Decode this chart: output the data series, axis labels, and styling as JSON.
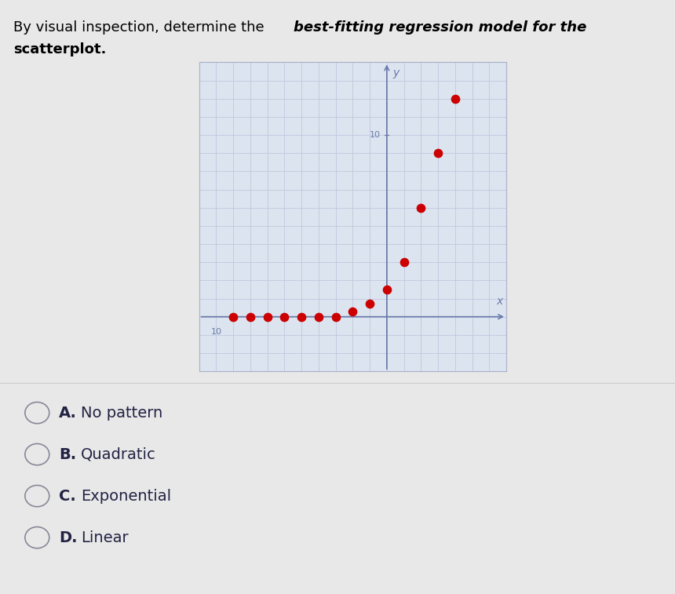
{
  "scatter_points": [
    [
      -9,
      0
    ],
    [
      -8,
      0
    ],
    [
      -7,
      0
    ],
    [
      -6,
      0
    ],
    [
      -5,
      0
    ],
    [
      -4,
      0
    ],
    [
      -3,
      0
    ],
    [
      -2,
      0.3
    ],
    [
      -1,
      0.7
    ],
    [
      0,
      1.5
    ],
    [
      1,
      3
    ],
    [
      2,
      6
    ],
    [
      3,
      9
    ],
    [
      4,
      12
    ]
  ],
  "dot_color": "#cc0000",
  "dot_size": 55,
  "axis_color": "#6a7aaa",
  "grid_color": "#c0c8dc",
  "bg_color": "#dce4f0",
  "xlim": [
    -11,
    7
  ],
  "ylim": [
    -3,
    14
  ],
  "x_tick_label": "10",
  "y_tick_label": "10",
  "xlabel": "x",
  "ylabel": "y",
  "choices": [
    "A.",
    "B.",
    "C.",
    "D."
  ],
  "choice_texts": [
    "No pattern",
    "Quadratic",
    "Exponential",
    "Linear"
  ],
  "choice_fontsize": 14,
  "title_normal": "By visual inspection, determine the ",
  "title_bold_italic": "best-fitting regression model for the",
  "title_second_line": "scatterplot.",
  "title_fontsize": 13,
  "fig_bg": "#e8e8e8",
  "panel_bg": "#e0e0e0"
}
